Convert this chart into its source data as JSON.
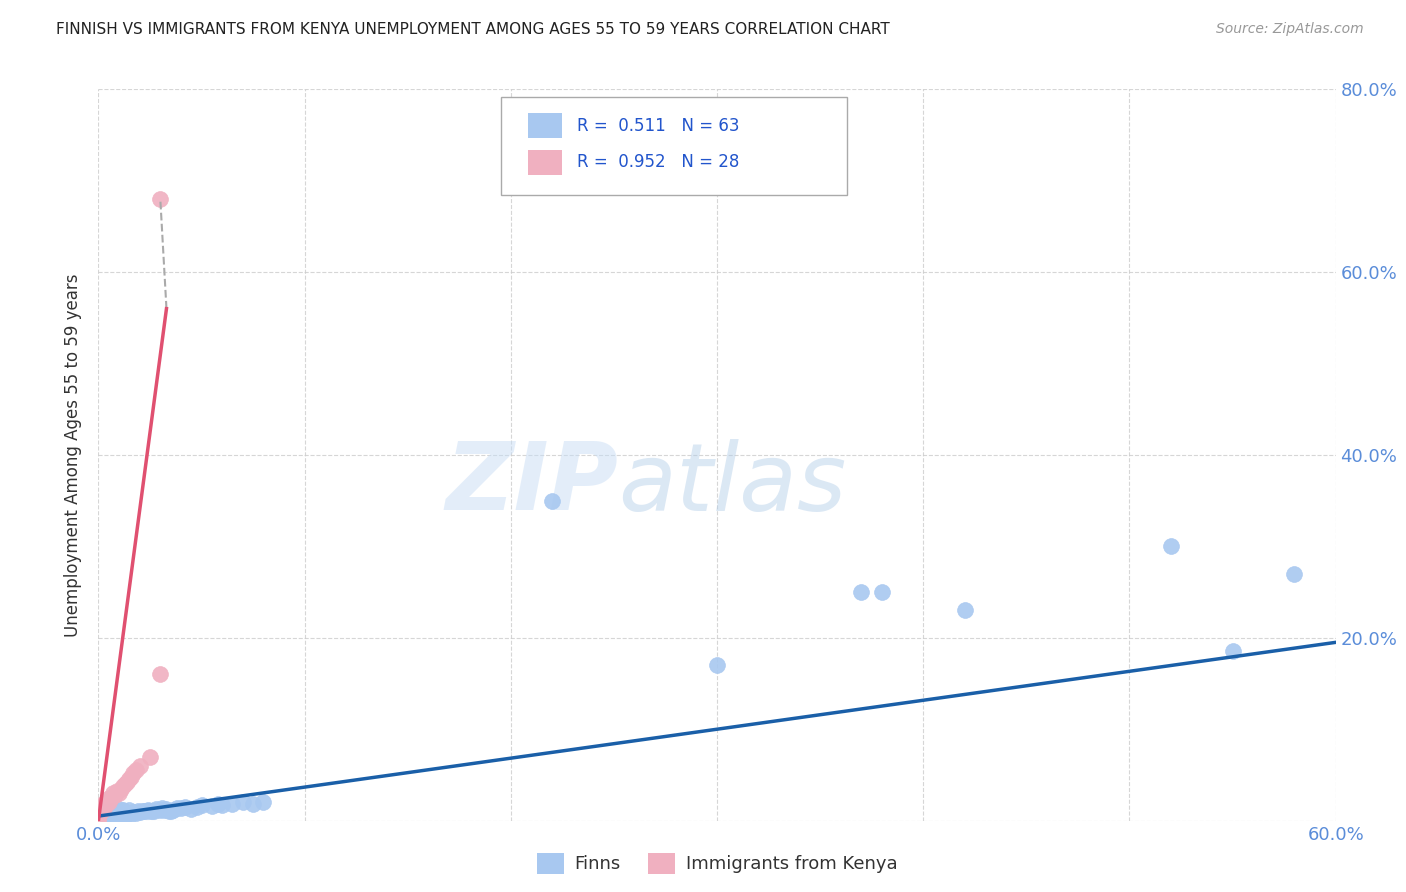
{
  "title": "FINNISH VS IMMIGRANTS FROM KENYA UNEMPLOYMENT AMONG AGES 55 TO 59 YEARS CORRELATION CHART",
  "source": "Source: ZipAtlas.com",
  "ylabel": "Unemployment Among Ages 55 to 59 years",
  "xlim": [
    0.0,
    0.6
  ],
  "ylim": [
    0.0,
    0.8
  ],
  "legend_R_finns": "0.511",
  "legend_N_finns": "63",
  "legend_R_kenya": "0.952",
  "legend_N_kenya": "28",
  "color_finns": "#a8c8f0",
  "color_kenya": "#f0b0c0",
  "color_line_finns": "#1a5fa8",
  "color_line_kenya": "#e05070",
  "watermark_zip": "ZIP",
  "watermark_atlas": "atlas",
  "finns_x": [
    0.0,
    0.0,
    0.0,
    0.0,
    0.0,
    0.001,
    0.001,
    0.002,
    0.002,
    0.003,
    0.004,
    0.005,
    0.005,
    0.006,
    0.006,
    0.007,
    0.007,
    0.008,
    0.008,
    0.009,
    0.01,
    0.01,
    0.01,
    0.011,
    0.012,
    0.012,
    0.013,
    0.014,
    0.015,
    0.015,
    0.016,
    0.017,
    0.018,
    0.019,
    0.02,
    0.021,
    0.022,
    0.023,
    0.024,
    0.025,
    0.026,
    0.027,
    0.028,
    0.03,
    0.031,
    0.032,
    0.033,
    0.034,
    0.035,
    0.036,
    0.038,
    0.04,
    0.042,
    0.045,
    0.048,
    0.05,
    0.055,
    0.058,
    0.06,
    0.065,
    0.07,
    0.075,
    0.08
  ],
  "finns_y": [
    0.0,
    0.002,
    0.004,
    0.006,
    0.008,
    0.003,
    0.007,
    0.004,
    0.008,
    0.005,
    0.006,
    0.004,
    0.01,
    0.005,
    0.009,
    0.006,
    0.01,
    0.007,
    0.011,
    0.008,
    0.005,
    0.01,
    0.013,
    0.008,
    0.007,
    0.012,
    0.009,
    0.007,
    0.008,
    0.012,
    0.007,
    0.009,
    0.008,
    0.01,
    0.009,
    0.01,
    0.011,
    0.01,
    0.012,
    0.01,
    0.011,
    0.01,
    0.013,
    0.012,
    0.014,
    0.012,
    0.013,
    0.011,
    0.01,
    0.012,
    0.014,
    0.014,
    0.015,
    0.013,
    0.015,
    0.017,
    0.016,
    0.018,
    0.017,
    0.018,
    0.02,
    0.018,
    0.02
  ],
  "finns_outliers_x": [
    0.22,
    0.3,
    0.37,
    0.38,
    0.42,
    0.52,
    0.55,
    0.58
  ],
  "finns_outliers_y": [
    0.35,
    0.17,
    0.25,
    0.25,
    0.23,
    0.3,
    0.185,
    0.27
  ],
  "kenya_x": [
    0.0,
    0.0,
    0.0,
    0.0,
    0.001,
    0.001,
    0.002,
    0.002,
    0.003,
    0.004,
    0.005,
    0.005,
    0.006,
    0.007,
    0.008,
    0.009,
    0.01,
    0.011,
    0.012,
    0.013,
    0.014,
    0.015,
    0.016,
    0.017,
    0.018,
    0.02,
    0.025,
    0.03
  ],
  "kenya_y": [
    0.0,
    0.003,
    0.006,
    0.01,
    0.008,
    0.014,
    0.012,
    0.018,
    0.016,
    0.019,
    0.02,
    0.025,
    0.025,
    0.03,
    0.028,
    0.032,
    0.03,
    0.035,
    0.038,
    0.04,
    0.042,
    0.045,
    0.048,
    0.052,
    0.055,
    0.06,
    0.07,
    0.16
  ],
  "kenya_outlier_x": [
    0.03
  ],
  "kenya_outlier_y": [
    0.68
  ],
  "finns_line_x": [
    0.0,
    0.6
  ],
  "finns_line_y": [
    0.005,
    0.195
  ],
  "kenya_line_x": [
    0.0,
    0.033
  ],
  "kenya_line_y": [
    0.0,
    0.56
  ]
}
